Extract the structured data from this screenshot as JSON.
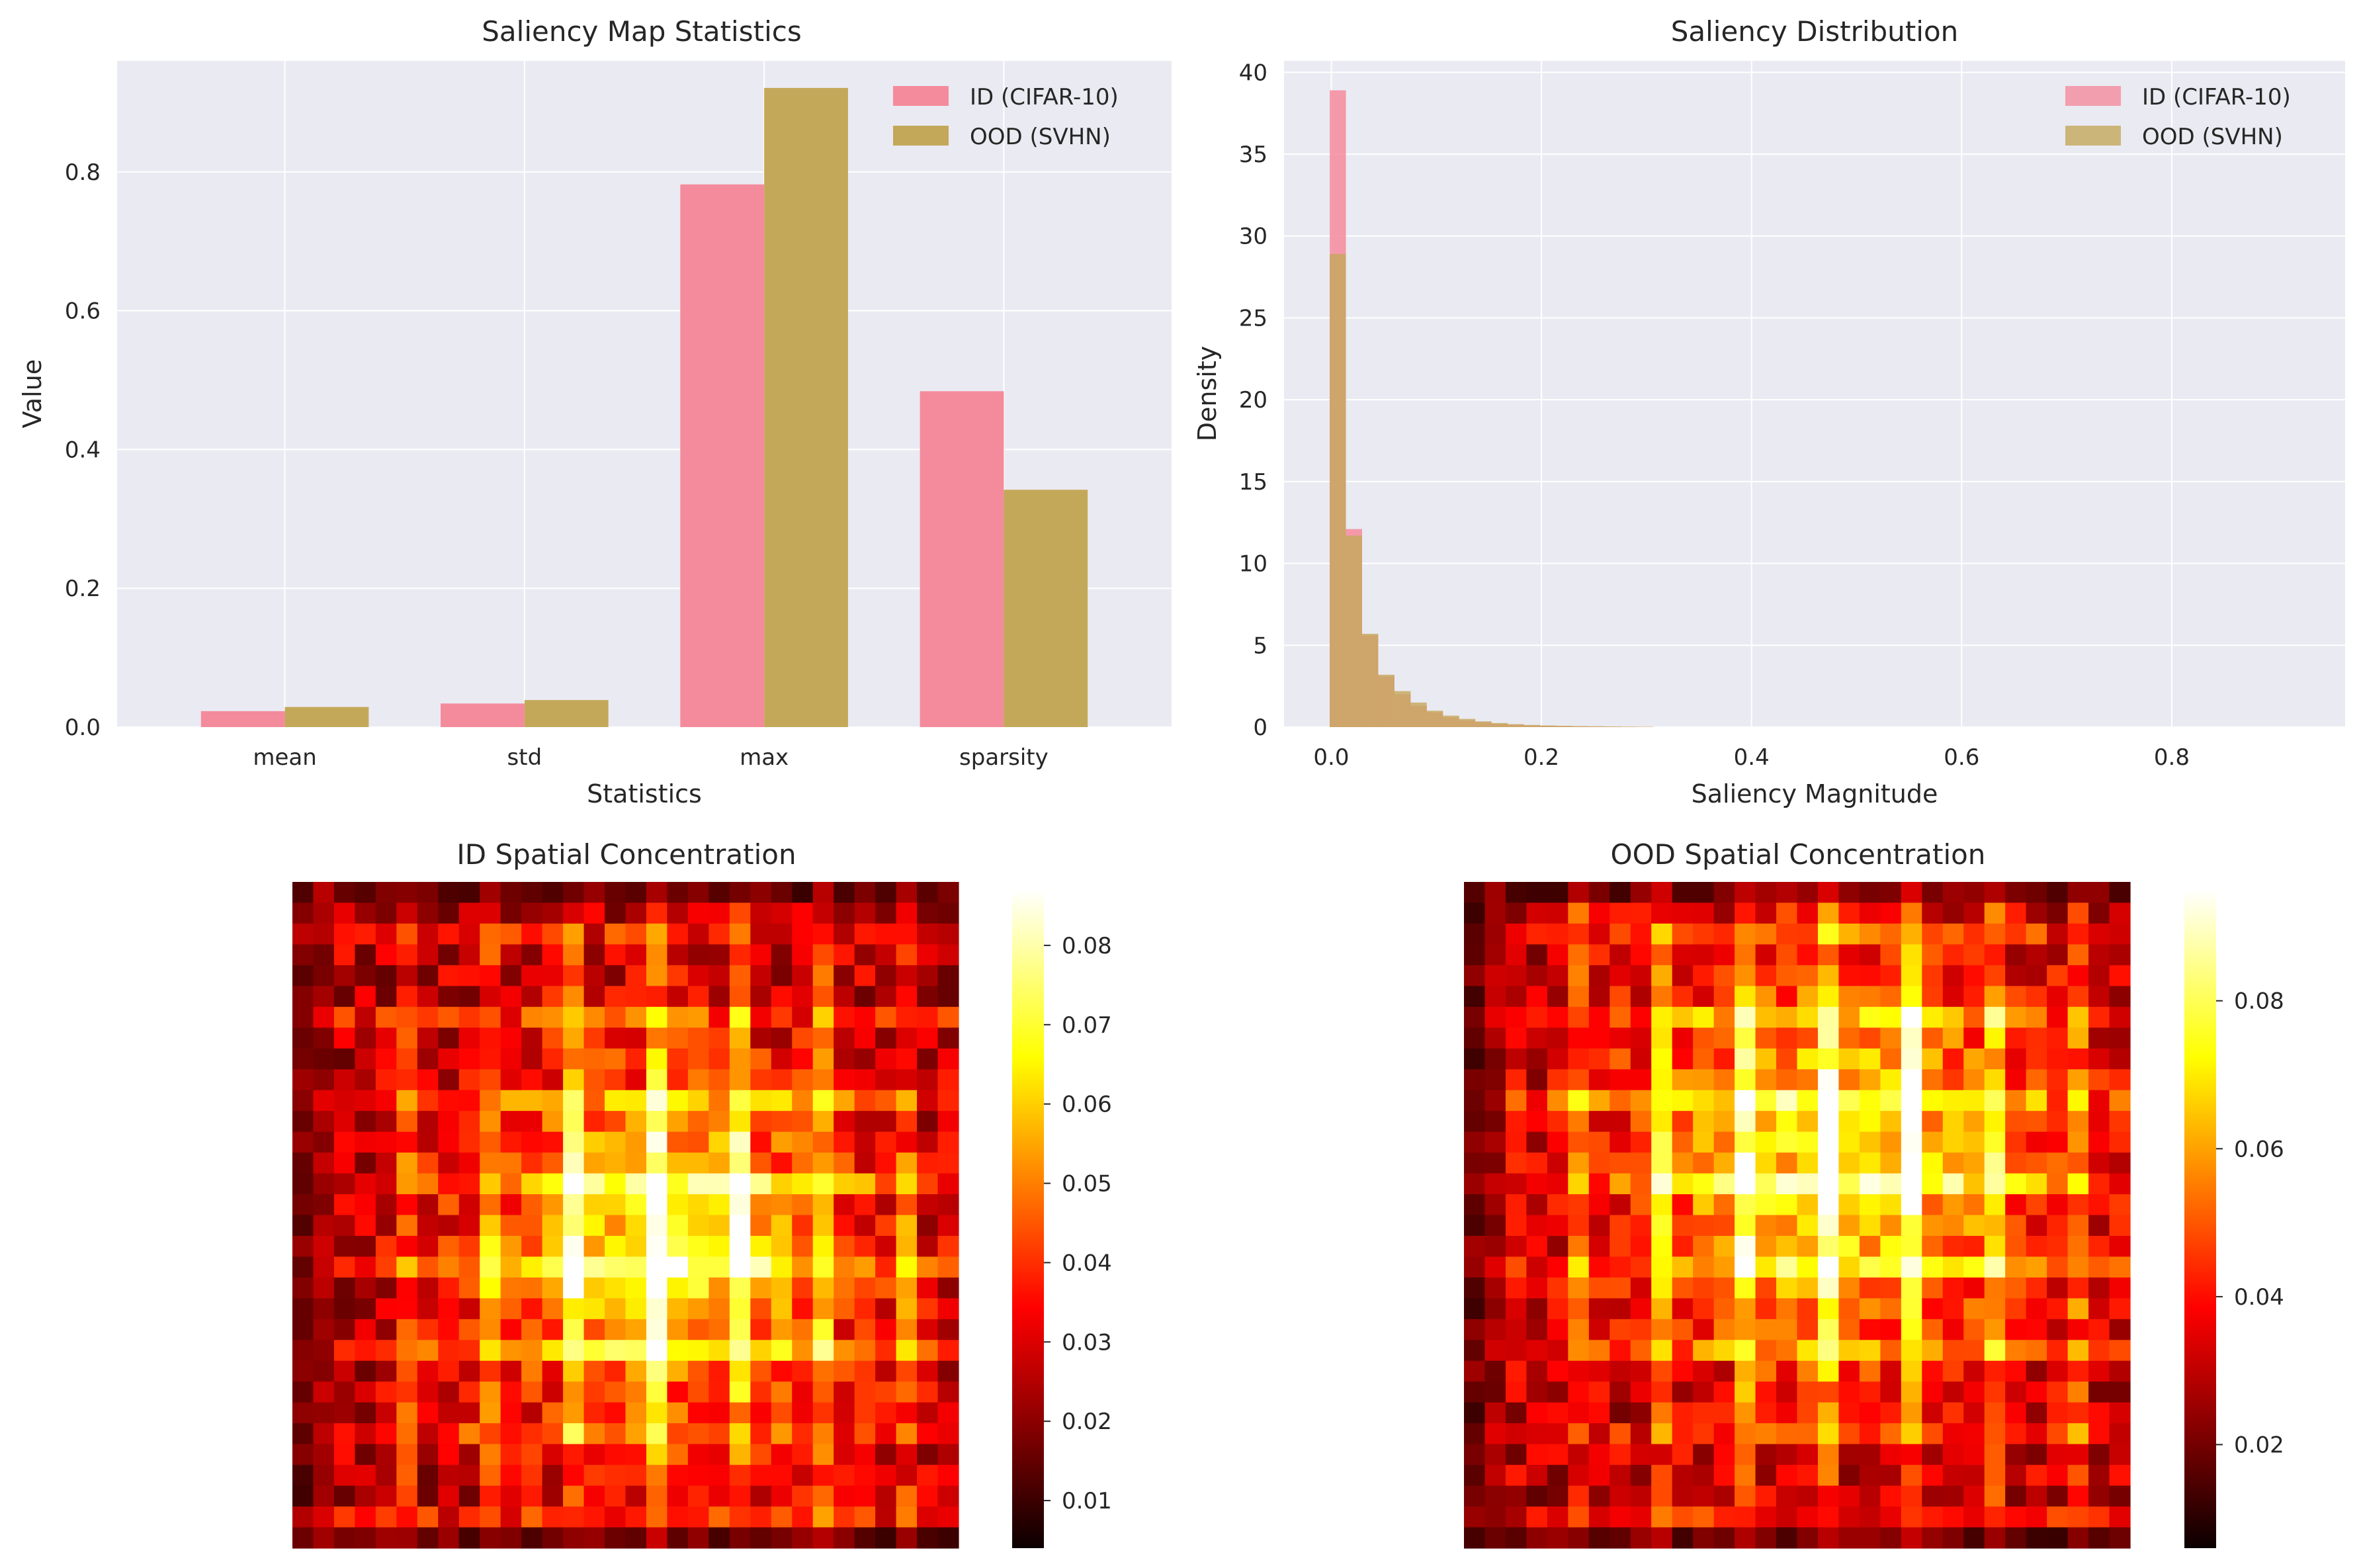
{
  "palette": {
    "id": "#f48b9c",
    "ood": "#c4a85a",
    "axes_bg": "#eaeaf2",
    "grid": "#ffffff"
  },
  "chart_data": [
    {
      "type": "bar",
      "title": "Saliency Map Statistics",
      "xlabel": "Statistics",
      "ylabel": "Value",
      "categories": [
        "mean",
        "std",
        "max",
        "sparsity"
      ],
      "series": [
        {
          "name": "ID (CIFAR-10)",
          "values": [
            0.023,
            0.034,
            0.782,
            0.484
          ]
        },
        {
          "name": "OOD (SVHN)",
          "values": [
            0.029,
            0.039,
            0.921,
            0.342
          ]
        }
      ],
      "ylim": [
        0,
        0.96
      ],
      "yticks": [
        0.0,
        0.2,
        0.4,
        0.6,
        0.8
      ],
      "legend": "top-right",
      "grid": true
    },
    {
      "type": "bar",
      "title": "Saliency Distribution",
      "xlabel": "Saliency Magnitude",
      "ylabel": "Density",
      "bin_width": 0.0154,
      "xlim": [
        -0.045,
        0.965
      ],
      "ylim": [
        0,
        40.7
      ],
      "xticks": [
        0.0,
        0.2,
        0.4,
        0.6,
        0.8
      ],
      "yticks": [
        0,
        5,
        10,
        15,
        20,
        25,
        30,
        35,
        40
      ],
      "bin_start": -0.0015,
      "series": [
        {
          "name": "ID (CIFAR-10)",
          "values": [
            38.9,
            12.1,
            5.6,
            3.1,
            2.0,
            1.3,
            0.9,
            0.6,
            0.4,
            0.3,
            0.2,
            0.15,
            0.1,
            0.08,
            0.06,
            0.05,
            0.04,
            0.03,
            0.02,
            0.02
          ]
        },
        {
          "name": "OOD (SVHN)",
          "values": [
            28.9,
            11.7,
            5.7,
            3.2,
            2.2,
            1.5,
            1.0,
            0.7,
            0.5,
            0.35,
            0.25,
            0.18,
            0.13,
            0.1,
            0.08,
            0.06,
            0.05,
            0.04,
            0.03,
            0.02
          ]
        }
      ],
      "legend": "top-right",
      "grid": true
    },
    {
      "type": "heatmap",
      "title": "ID Spatial Concentration",
      "colormap": "hot",
      "grid_size": 32,
      "vmin": 0.004,
      "vmax": 0.087,
      "colorbar_ticks": [
        0.01,
        0.02,
        0.03,
        0.04,
        0.05,
        0.06,
        0.07,
        0.08
      ]
    },
    {
      "type": "heatmap",
      "title": "OOD Spatial Concentration",
      "colormap": "hot",
      "grid_size": 32,
      "vmin": 0.006,
      "vmax": 0.095,
      "colorbar_ticks": [
        0.02,
        0.04,
        0.06,
        0.08
      ]
    }
  ]
}
